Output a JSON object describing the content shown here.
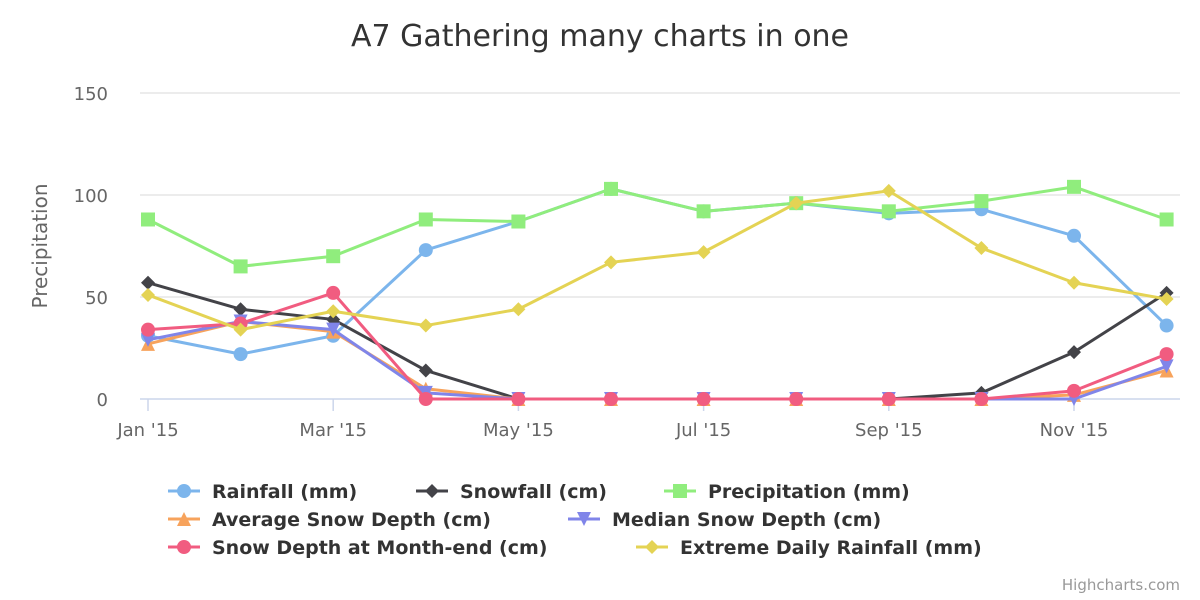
{
  "chart_data": {
    "type": "line",
    "title": "A7 Gathering many charts in one",
    "xlabel": "",
    "ylabel": "Precipitation",
    "ylim": [
      0,
      150
    ],
    "yticks": [
      "0",
      "50",
      "100",
      "150"
    ],
    "ytick_values": [
      0,
      50,
      100,
      150
    ],
    "categories": [
      "Jan '15",
      "Feb '15",
      "Mar '15",
      "Apr '15",
      "May '15",
      "Jun '15",
      "Jul '15",
      "Aug '15",
      "Sep '15",
      "Oct '15",
      "Nov '15",
      "Dec '15"
    ],
    "xtick_labels": [
      "Jan '15",
      "Mar '15",
      "May '15",
      "Jul '15",
      "Sep '15",
      "Nov '15"
    ],
    "xtick_indices": [
      0,
      2,
      4,
      6,
      8,
      10
    ],
    "grid": true,
    "legend_position": "bottom",
    "series": [
      {
        "name": "Rainfall (mm)",
        "color": "#7cb5ec",
        "marker": "circle",
        "values": [
          31,
          22,
          31,
          73,
          87,
          103,
          92,
          96,
          91,
          93,
          80,
          36
        ]
      },
      {
        "name": "Snowfall (cm)",
        "color": "#434348",
        "marker": "diamond",
        "values": [
          57,
          44,
          39,
          14,
          0,
          0,
          0,
          0,
          0,
          3,
          23,
          52
        ]
      },
      {
        "name": "Precipitation (mm)",
        "color": "#90ed7d",
        "marker": "square",
        "values": [
          88,
          65,
          70,
          88,
          87,
          103,
          92,
          96,
          92,
          97,
          104,
          88
        ]
      },
      {
        "name": "Average Snow Depth (cm)",
        "color": "#f7a35c",
        "marker": "triangle",
        "values": [
          27,
          38,
          33,
          5,
          0,
          0,
          0,
          0,
          0,
          0,
          2,
          14
        ]
      },
      {
        "name": "Median Snow Depth (cm)",
        "color": "#8085e9",
        "marker": "triangle-down",
        "values": [
          29,
          38,
          34,
          3,
          0,
          0,
          0,
          0,
          0,
          0,
          0,
          16
        ]
      },
      {
        "name": "Snow Depth at Month-end (cm)",
        "color": "#f15c80",
        "marker": "circle",
        "values": [
          34,
          37,
          52,
          0,
          0,
          0,
          0,
          0,
          0,
          0,
          4,
          22
        ]
      },
      {
        "name": "Extreme Daily Rainfall (mm)",
        "color": "#e4d354",
        "marker": "diamond",
        "values": [
          51,
          34,
          43,
          36,
          44,
          67,
          72,
          96,
          102,
          74,
          57,
          49
        ]
      }
    ]
  },
  "credits": "Highcharts.com",
  "colors": {
    "grid": "#e6e6e6",
    "axis": "#ccd6eb"
  }
}
